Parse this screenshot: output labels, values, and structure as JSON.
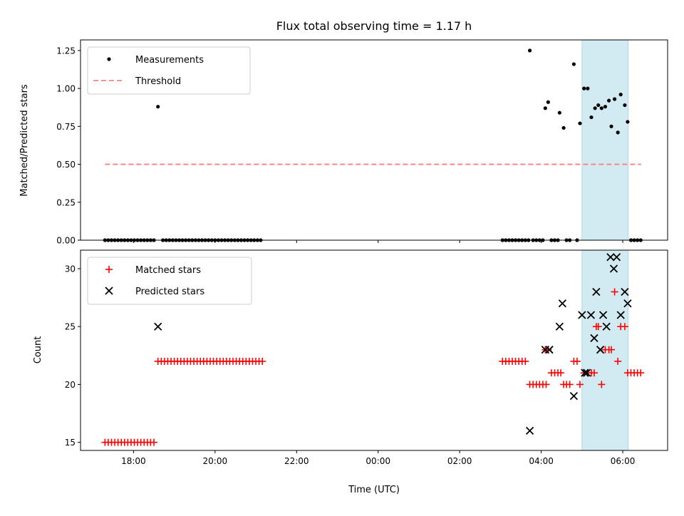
{
  "chart_data": [
    {
      "type": "scatter",
      "panel": "top",
      "title": "Flux total observing time = 1.17 h",
      "xlabel": "",
      "ylabel": "Matched/Predicted stars",
      "ylim": [
        0,
        1.32
      ],
      "yticks": [
        0.0,
        0.25,
        0.5,
        0.75,
        1.0,
        1.25
      ],
      "ytick_labels": [
        "0.00",
        "0.25",
        "0.50",
        "0.75",
        "1.00",
        "1.25"
      ],
      "shaded_span": {
        "from": 29.0,
        "to": 30.13,
        "color": "#add8e6"
      },
      "legend": {
        "placement": "upper left",
        "entries": [
          "Measurements",
          "Threshold"
        ]
      },
      "series": [
        {
          "name": "Measurements",
          "marker": "dot",
          "color": "#000000",
          "points": [
            [
              17.3,
              0
            ],
            [
              17.38,
              0
            ],
            [
              17.46,
              0
            ],
            [
              17.54,
              0
            ],
            [
              17.62,
              0
            ],
            [
              17.7,
              0
            ],
            [
              17.78,
              0
            ],
            [
              17.86,
              0
            ],
            [
              17.94,
              0
            ],
            [
              18.02,
              0
            ],
            [
              18.1,
              0
            ],
            [
              18.18,
              0
            ],
            [
              18.26,
              0
            ],
            [
              18.34,
              0
            ],
            [
              18.42,
              0
            ],
            [
              18.5,
              0
            ],
            [
              18.6,
              0.88
            ],
            [
              18.72,
              0
            ],
            [
              18.8,
              0
            ],
            [
              18.88,
              0
            ],
            [
              18.96,
              0
            ],
            [
              19.04,
              0
            ],
            [
              19.12,
              0
            ],
            [
              19.2,
              0
            ],
            [
              19.28,
              0
            ],
            [
              19.36,
              0
            ],
            [
              19.44,
              0
            ],
            [
              19.52,
              0
            ],
            [
              19.6,
              0
            ],
            [
              19.68,
              0
            ],
            [
              19.76,
              0
            ],
            [
              19.84,
              0
            ],
            [
              19.92,
              0
            ],
            [
              20.0,
              0
            ],
            [
              20.08,
              0
            ],
            [
              20.16,
              0
            ],
            [
              20.24,
              0
            ],
            [
              20.32,
              0
            ],
            [
              20.4,
              0
            ],
            [
              20.48,
              0
            ],
            [
              20.56,
              0
            ],
            [
              20.64,
              0
            ],
            [
              20.72,
              0
            ],
            [
              20.8,
              0
            ],
            [
              20.88,
              0
            ],
            [
              20.96,
              0
            ],
            [
              21.04,
              0
            ],
            [
              21.12,
              0
            ],
            [
              27.05,
              0
            ],
            [
              27.13,
              0
            ],
            [
              27.21,
              0
            ],
            [
              27.29,
              0
            ],
            [
              27.37,
              0
            ],
            [
              27.45,
              0
            ],
            [
              27.53,
              0
            ],
            [
              27.61,
              0
            ],
            [
              27.69,
              0
            ],
            [
              27.72,
              1.25
            ],
            [
              27.8,
              0
            ],
            [
              27.88,
              0
            ],
            [
              27.96,
              0
            ],
            [
              28.04,
              0
            ],
            [
              28.1,
              0.87
            ],
            [
              28.17,
              0.91
            ],
            [
              28.25,
              0
            ],
            [
              28.33,
              0
            ],
            [
              28.41,
              0
            ],
            [
              28.45,
              0.84
            ],
            [
              28.55,
              0.74
            ],
            [
              28.62,
              0
            ],
            [
              28.7,
              0
            ],
            [
              28.8,
              1.16
            ],
            [
              28.88,
              0
            ],
            [
              28.95,
              0.77
            ],
            [
              29.05,
              1.0
            ],
            [
              29.14,
              1.0
            ],
            [
              29.23,
              0.81
            ],
            [
              29.32,
              0.87
            ],
            [
              29.4,
              0.89
            ],
            [
              29.48,
              0.87
            ],
            [
              29.57,
              0.88
            ],
            [
              29.66,
              0.92
            ],
            [
              29.72,
              0.75
            ],
            [
              29.8,
              0.93
            ],
            [
              29.88,
              0.71
            ],
            [
              29.95,
              0.96
            ],
            [
              30.05,
              0.89
            ],
            [
              30.12,
              0.78
            ],
            [
              30.2,
              0
            ],
            [
              30.28,
              0
            ],
            [
              30.36,
              0
            ],
            [
              30.44,
              0
            ]
          ]
        },
        {
          "name": "Threshold",
          "marker": "dashed-line",
          "color": "#ff7f7f",
          "x": [
            17.3,
            30.45
          ],
          "y": [
            0.5,
            0.5
          ]
        }
      ]
    },
    {
      "type": "scatter",
      "panel": "bottom",
      "title": "",
      "xlabel": "Time (UTC)",
      "ylabel": "Count",
      "ylim": [
        14.3,
        31.6
      ],
      "yticks": [
        15,
        20,
        25,
        30
      ],
      "ytick_labels": [
        "15",
        "20",
        "25",
        "30"
      ],
      "xlim": [
        16.7,
        31.1
      ],
      "xticks": [
        18,
        20,
        22,
        24,
        26,
        28,
        30
      ],
      "xtick_labels": [
        "18:00",
        "20:00",
        "22:00",
        "00:00",
        "02:00",
        "04:00",
        "06:00"
      ],
      "shaded_span": {
        "from": 29.0,
        "to": 30.13,
        "color": "#add8e6"
      },
      "legend": {
        "placement": "upper left",
        "entries": [
          "Matched stars",
          "Predicted stars"
        ]
      },
      "series": [
        {
          "name": "Matched stars",
          "marker": "plus",
          "color": "#ff0000",
          "points": [
            [
              17.3,
              15
            ],
            [
              17.38,
              15
            ],
            [
              17.46,
              15
            ],
            [
              17.54,
              15
            ],
            [
              17.62,
              15
            ],
            [
              17.7,
              15
            ],
            [
              17.78,
              15
            ],
            [
              17.86,
              15
            ],
            [
              17.94,
              15
            ],
            [
              18.02,
              15
            ],
            [
              18.1,
              15
            ],
            [
              18.18,
              15
            ],
            [
              18.26,
              15
            ],
            [
              18.34,
              15
            ],
            [
              18.42,
              15
            ],
            [
              18.5,
              15
            ],
            [
              18.6,
              22
            ],
            [
              18.68,
              22
            ],
            [
              18.76,
              22
            ],
            [
              18.84,
              22
            ],
            [
              18.92,
              22
            ],
            [
              19.0,
              22
            ],
            [
              19.08,
              22
            ],
            [
              19.16,
              22
            ],
            [
              19.24,
              22
            ],
            [
              19.32,
              22
            ],
            [
              19.4,
              22
            ],
            [
              19.48,
              22
            ],
            [
              19.56,
              22
            ],
            [
              19.64,
              22
            ],
            [
              19.72,
              22
            ],
            [
              19.8,
              22
            ],
            [
              19.88,
              22
            ],
            [
              19.96,
              22
            ],
            [
              20.04,
              22
            ],
            [
              20.12,
              22
            ],
            [
              20.2,
              22
            ],
            [
              20.28,
              22
            ],
            [
              20.36,
              22
            ],
            [
              20.44,
              22
            ],
            [
              20.52,
              22
            ],
            [
              20.6,
              22
            ],
            [
              20.68,
              22
            ],
            [
              20.76,
              22
            ],
            [
              20.84,
              22
            ],
            [
              20.92,
              22
            ],
            [
              21.0,
              22
            ],
            [
              21.08,
              22
            ],
            [
              21.16,
              22
            ],
            [
              27.05,
              22
            ],
            [
              27.13,
              22
            ],
            [
              27.21,
              22
            ],
            [
              27.29,
              22
            ],
            [
              27.37,
              22
            ],
            [
              27.45,
              22
            ],
            [
              27.53,
              22
            ],
            [
              27.61,
              22
            ],
            [
              27.72,
              20
            ],
            [
              27.8,
              20
            ],
            [
              27.88,
              20
            ],
            [
              27.96,
              20
            ],
            [
              28.04,
              20
            ],
            [
              28.12,
              20
            ],
            [
              28.1,
              23
            ],
            [
              28.17,
              23
            ],
            [
              28.25,
              21
            ],
            [
              28.33,
              21
            ],
            [
              28.41,
              21
            ],
            [
              28.48,
              21
            ],
            [
              28.55,
              20
            ],
            [
              28.62,
              20
            ],
            [
              28.7,
              20
            ],
            [
              28.8,
              22
            ],
            [
              28.88,
              22
            ],
            [
              28.95,
              20
            ],
            [
              29.05,
              21
            ],
            [
              29.14,
              21
            ],
            [
              29.23,
              21
            ],
            [
              29.3,
              21
            ],
            [
              29.35,
              25
            ],
            [
              29.4,
              25
            ],
            [
              29.48,
              20
            ],
            [
              29.57,
              23
            ],
            [
              29.66,
              23
            ],
            [
              29.72,
              23
            ],
            [
              29.8,
              28
            ],
            [
              29.88,
              22
            ],
            [
              29.95,
              25
            ],
            [
              30.05,
              25
            ],
            [
              30.12,
              21
            ],
            [
              30.2,
              21
            ],
            [
              30.28,
              21
            ],
            [
              30.36,
              21
            ],
            [
              30.44,
              21
            ]
          ]
        },
        {
          "name": "Predicted stars",
          "marker": "x",
          "color": "#000000",
          "points": [
            [
              18.6,
              25
            ],
            [
              27.72,
              16
            ],
            [
              28.1,
              23
            ],
            [
              28.2,
              23
            ],
            [
              28.45,
              25
            ],
            [
              28.52,
              27
            ],
            [
              28.8,
              19
            ],
            [
              29.0,
              26
            ],
            [
              29.07,
              21
            ],
            [
              29.12,
              21
            ],
            [
              29.22,
              26
            ],
            [
              29.3,
              24
            ],
            [
              29.35,
              28
            ],
            [
              29.45,
              23
            ],
            [
              29.52,
              26
            ],
            [
              29.6,
              25
            ],
            [
              29.7,
              31
            ],
            [
              29.78,
              30
            ],
            [
              29.85,
              31
            ],
            [
              29.95,
              26
            ],
            [
              30.05,
              28
            ],
            [
              30.12,
              27
            ]
          ]
        }
      ]
    }
  ]
}
